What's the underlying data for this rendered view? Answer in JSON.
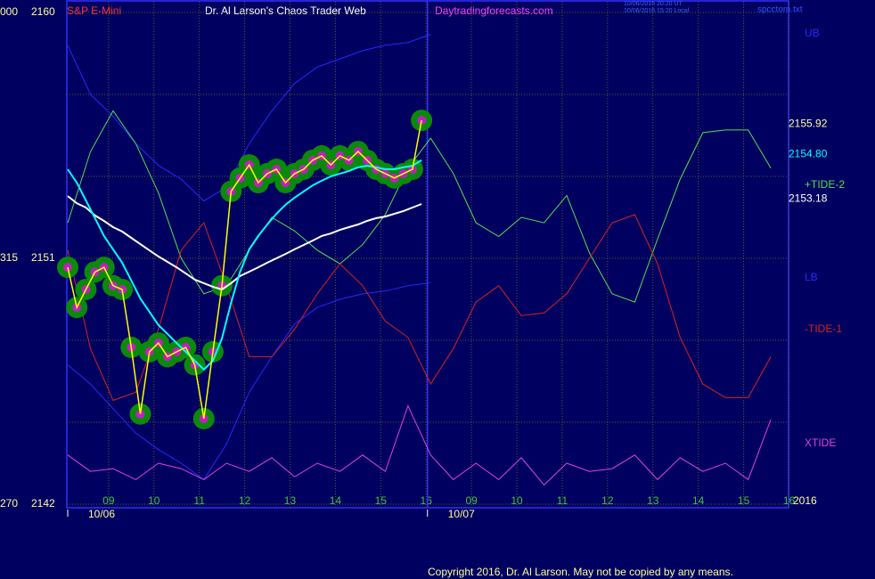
{
  "chart_data": [
    {
      "type": "line",
      "subtitle": "S&P E-Mini",
      "title": "Dr. Al Larson's Chaos Trader Web",
      "source": "Daytradingforecasts.com",
      "timestamps": [
        "10/06/2016 20:20 UT",
        "10/06/2016 15:20 Local"
      ],
      "file": "spcctom.txt",
      "year": "2016",
      "copyright": "Copyright 2016, Dr. Al Larson. May not be copied by any means.",
      "x": [
        8.1,
        8.3,
        8.5,
        8.7,
        8.9,
        9.1,
        9.3,
        9.5,
        9.7,
        9.9,
        10.1,
        10.3,
        10.5,
        10.7,
        10.9,
        11.1,
        11.3,
        11.5,
        11.7,
        11.9,
        12.1,
        12.3,
        12.5,
        12.7,
        12.9,
        13.1,
        13.3,
        13.5,
        13.7,
        13.9,
        14.1,
        14.3,
        14.5,
        14.7,
        14.9,
        15.1,
        15.3,
        15.5,
        15.7,
        15.9
      ],
      "xlim": [
        8.08,
        23.99
      ],
      "xticks": [
        {
          "value": 9,
          "label": "09"
        },
        10,
        11,
        12,
        13,
        14,
        15,
        16,
        {
          "value": 17,
          "label": "09"
        },
        {
          "value": 18,
          "label": "10"
        },
        {
          "value": 19,
          "label": "11"
        },
        {
          "value": 20,
          "label": "12"
        },
        {
          "value": 21,
          "label": "13"
        },
        {
          "value": 22,
          "label": "14"
        },
        {
          "value": 23,
          "label": "15"
        },
        {
          "value": 24,
          "label": "16"
        }
      ],
      "dates": [
        {
          "value": 8.1,
          "label": "10/06"
        },
        {
          "value": 16.03,
          "label": "10/07"
        }
      ],
      "ylim": [
        2142,
        2160
      ],
      "yticks": [
        2142,
        2151,
        2160
      ],
      "minor_yticks": [
        2145,
        2148,
        2154,
        2157
      ],
      "y2lim": [
        270,
        360
      ],
      "y2ticks": [
        270,
        315,
        {
          "value": 360,
          "label": "000"
        }
      ],
      "grid": true,
      "series": [
        {
          "color": "#ffff00",
          "values": [
            2150.67,
            2149.2,
            2149.86,
            2150.5,
            2150.67,
            2150.0,
            2149.86,
            2147.74,
            2145.3,
            2147.58,
            2147.9,
            2147.4,
            2147.58,
            2147.74,
            2147.1,
            2145.13,
            2147.58,
            2150.0,
            2153.45,
            2153.94,
            2154.42,
            2153.77,
            2154.1,
            2154.26,
            2153.77,
            2154.1,
            2154.26,
            2154.59,
            2154.75,
            2154.42,
            2154.75,
            2154.59,
            2154.91,
            2154.59,
            2154.26,
            2154.1,
            2153.94,
            2154.1,
            2154.26,
            2156.05
          ]
        },
        {
          "color": "#00ffff",
          "values": [
            2154.26,
            2153.77,
            2153.12,
            2152.47,
            2151.82,
            2151.33,
            2150.84,
            2150.19,
            2149.53,
            2149.04,
            2148.56,
            2148.23,
            2147.9,
            2147.58,
            2147.25,
            2146.93,
            2147.25,
            2148.07,
            2149.37,
            2150.51,
            2151.33,
            2151.82,
            2152.24,
            2152.63,
            2152.96,
            2153.22,
            2153.45,
            2153.67,
            2153.84,
            2154.0,
            2154.1,
            2154.2,
            2154.33,
            2154.39,
            2154.33,
            2154.26,
            2154.26,
            2154.33,
            2154.39,
            2154.59
          ]
        },
        {
          "color": "#ffffff",
          "values": [
            2153.28,
            2153.02,
            2152.86,
            2152.57,
            2152.37,
            2152.14,
            2151.98,
            2151.75,
            2151.52,
            2151.29,
            2151.07,
            2150.87,
            2150.67,
            2150.45,
            2150.22,
            2150.09,
            2149.96,
            2149.86,
            2150.09,
            2150.35,
            2150.51,
            2150.67,
            2150.84,
            2151.0,
            2151.16,
            2151.33,
            2151.49,
            2151.65,
            2151.82,
            2151.91,
            2152.04,
            2152.14,
            2152.24,
            2152.37,
            2152.47,
            2152.53,
            2152.63,
            2152.73,
            2152.86,
            2152.99
          ]
        }
      ],
      "last_labels": [
        {
          "value": 2155.92,
          "label": "2155.92",
          "color": "#ffff99"
        },
        {
          "value": 2154.8,
          "label": "2154.80",
          "color": "#00ffff"
        },
        {
          "value": 2153.18,
          "label": "2153.18",
          "color": "#ffffff"
        }
      ]
    },
    {
      "type": "line",
      "x": [
        8.1,
        8.6,
        9.1,
        9.6,
        10.1,
        10.6,
        11.1,
        11.6,
        12.1,
        12.6,
        13.1,
        13.6,
        14.1,
        14.6,
        15.1,
        15.6,
        16.1,
        16.6,
        17.1,
        17.6,
        18.1,
        18.6,
        19.1,
        19.6,
        20.1,
        20.6,
        21.1,
        21.6,
        22.1,
        22.6,
        23.1,
        23.6
      ],
      "series": [
        {
          "name": "UB",
          "color": "#2828ff",
          "values": [
            2158.8,
            2157.0,
            2156.2,
            2155.2,
            2154.4,
            2153.9,
            2153.1,
            2153.6,
            2155.2,
            2156.4,
            2157.4,
            2158.0,
            2158.3,
            2158.6,
            2158.8,
            2158.9,
            2159.2,
            null,
            null,
            null,
            null,
            null,
            null,
            null,
            null,
            null,
            null,
            null,
            null,
            null,
            null,
            null
          ]
        },
        {
          "name": "LB",
          "color": "#2828ff",
          "values": [
            2147.1,
            2146.4,
            2145.5,
            2144.6,
            2144.0,
            2143.5,
            2142.9,
            2144.2,
            2146.1,
            2147.4,
            2148.6,
            2149.2,
            2149.5,
            2149.7,
            2149.8,
            2150.0,
            2150.1,
            null,
            null,
            null,
            null,
            null,
            null,
            null,
            null,
            null,
            null,
            null,
            null,
            null,
            null,
            null
          ]
        },
        {
          "name": "+TIDE-2",
          "color": "#50e050",
          "values": [
            2152.3,
            2154.9,
            2156.4,
            2155.2,
            2153.4,
            2151.0,
            2149.7,
            2150.0,
            2151.3,
            2152.5,
            2152.0,
            2151.3,
            2150.8,
            2151.5,
            2152.6,
            2154.3,
            2155.4,
            2154.1,
            2152.3,
            2151.8,
            2152.5,
            2152.3,
            2153.3,
            2151.2,
            2149.7,
            2149.4,
            2151.7,
            2153.9,
            2155.6,
            2155.7,
            2155.7,
            2154.3
          ]
        },
        {
          "name": "-TIDE-1",
          "color": "#d82020",
          "values": [
            2151.3,
            2147.7,
            2145.8,
            2146.1,
            2148.4,
            2151.3,
            2152.3,
            2150.0,
            2147.4,
            2147.4,
            2148.4,
            2149.7,
            2150.8,
            2150.0,
            2148.7,
            2148.1,
            2146.4,
            2147.7,
            2149.4,
            2150.0,
            2148.9,
            2149.0,
            2149.7,
            2151.0,
            2152.3,
            2152.6,
            2150.8,
            2148.1,
            2146.4,
            2145.9,
            2145.9,
            2147.4
          ]
        },
        {
          "name": "XTIDE",
          "color": "#e040e0",
          "values": [
            2143.8,
            2143.2,
            2143.3,
            2142.9,
            2143.5,
            2143.3,
            2142.9,
            2143.5,
            2143.2,
            2143.7,
            2143.0,
            2143.5,
            2143.2,
            2143.8,
            2143.2,
            2145.6,
            2143.8,
            2142.9,
            2143.5,
            2142.9,
            2143.7,
            2142.7,
            2143.5,
            2143.2,
            2143.3,
            2143.8,
            2142.9,
            2143.7,
            2143.2,
            2143.5,
            2142.9,
            2145.1
          ]
        }
      ]
    }
  ]
}
